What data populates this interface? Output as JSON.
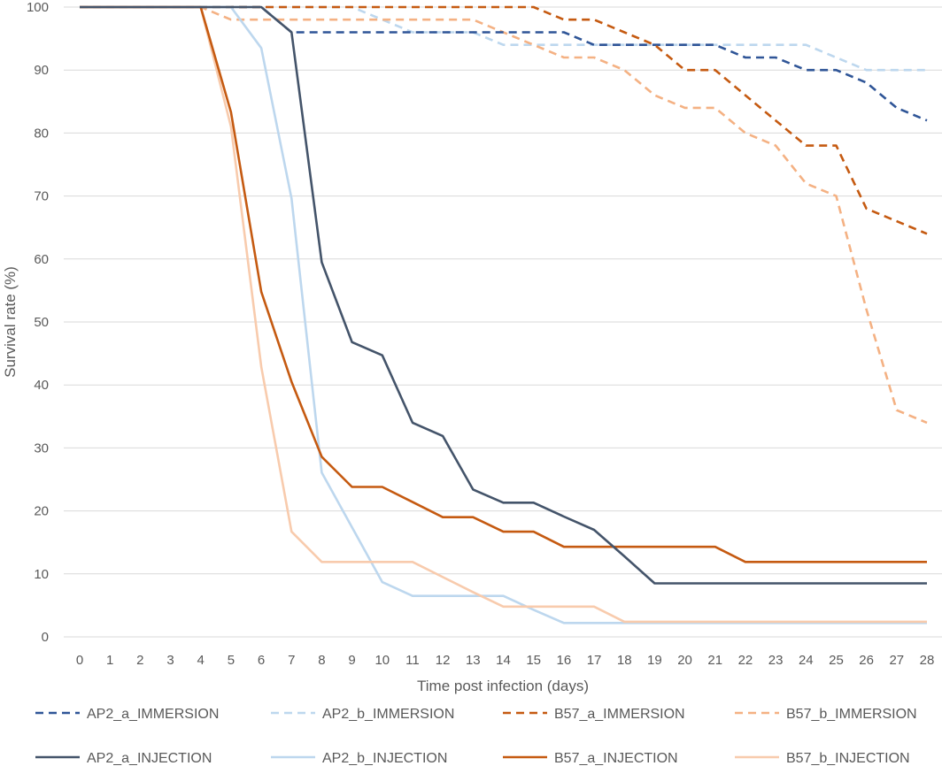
{
  "chart_data": {
    "type": "line",
    "title": "",
    "xlabel": "Time post infection (days)",
    "ylabel": "Survival rate (%)",
    "xlim": [
      0,
      28
    ],
    "ylim": [
      0,
      100
    ],
    "x_ticks": [
      0,
      1,
      2,
      3,
      4,
      5,
      6,
      7,
      8,
      9,
      10,
      11,
      12,
      13,
      14,
      15,
      16,
      17,
      18,
      19,
      20,
      21,
      22,
      23,
      24,
      25,
      26,
      27,
      28
    ],
    "y_ticks": [
      0,
      10,
      20,
      30,
      40,
      50,
      60,
      70,
      80,
      90,
      100
    ],
    "grid": "horizontal",
    "legend_position": "bottom",
    "series": [
      {
        "name": "AP2_a_IMMERSION",
        "color": "#2F5597",
        "dash": "dashed",
        "x": [
          0,
          4,
          6,
          7,
          10,
          13,
          16,
          17,
          18,
          19,
          21,
          22,
          23,
          24,
          25,
          26,
          27,
          28
        ],
        "y": [
          100,
          100,
          100,
          96,
          96,
          96,
          96,
          94,
          94,
          94,
          94,
          92,
          92,
          90,
          90,
          88,
          84,
          82
        ]
      },
      {
        "name": "AP2_b_IMMERSION",
        "color": "#BDD7EE",
        "dash": "dashed",
        "x": [
          0,
          4,
          5,
          7,
          8,
          9,
          10,
          11,
          12,
          13,
          14,
          15,
          16,
          17,
          24,
          25,
          26,
          27,
          28
        ],
        "y": [
          100,
          100,
          100,
          100,
          100,
          100,
          98,
          96,
          96,
          96,
          94,
          94,
          94,
          94,
          94,
          92,
          90,
          90,
          90
        ]
      },
      {
        "name": "B57_a_IMMERSION",
        "color": "#C55A11",
        "dash": "dashed",
        "x": [
          0,
          4,
          15,
          16,
          17,
          18,
          19,
          20,
          21,
          22,
          23,
          24,
          25,
          26,
          27,
          28
        ],
        "y": [
          100,
          100,
          100,
          98,
          98,
          96,
          94,
          90,
          90,
          86,
          82,
          78,
          78,
          68,
          66,
          64
        ]
      },
      {
        "name": "B57_b_IMMERSION",
        "color": "#F4B183",
        "dash": "dashed",
        "x": [
          0,
          4,
          5,
          13,
          14,
          15,
          16,
          17,
          18,
          19,
          20,
          21,
          22,
          23,
          24,
          25,
          26,
          27,
          28
        ],
        "y": [
          100,
          100,
          98,
          98,
          96,
          94,
          92,
          92,
          90,
          86,
          84,
          84,
          80,
          78,
          72,
          70,
          52,
          36,
          34
        ]
      },
      {
        "name": "AP2_a_INJECTION",
        "color": "#44546A",
        "dash": "solid",
        "x": [
          0,
          4,
          5,
          6,
          7,
          8,
          9,
          10,
          11,
          12,
          13,
          14,
          15,
          16,
          17,
          18,
          19,
          28
        ],
        "y": [
          100,
          100,
          100,
          100,
          96,
          59.5,
          46.8,
          44.7,
          34,
          31.9,
          23.4,
          21.3,
          21.3,
          19.1,
          17,
          12.8,
          8.5,
          8.5
        ]
      },
      {
        "name": "AP2_b_INJECTION",
        "color": "#BDD7EE",
        "dash": "solid",
        "x": [
          0,
          4,
          5,
          6,
          7,
          8,
          9,
          10,
          11,
          12,
          13,
          14,
          15,
          16,
          28
        ],
        "y": [
          100,
          100,
          100,
          93.5,
          69.6,
          26.1,
          17.4,
          8.7,
          6.5,
          6.5,
          6.5,
          6.5,
          4.3,
          2.2,
          2.2
        ]
      },
      {
        "name": "B57_a_INJECTION",
        "color": "#C55A11",
        "dash": "solid",
        "x": [
          0,
          4,
          5,
          6,
          7,
          8,
          9,
          10,
          11,
          12,
          13,
          14,
          15,
          16,
          21,
          22,
          28
        ],
        "y": [
          100,
          100,
          83.3,
          54.8,
          40.5,
          28.6,
          23.8,
          23.8,
          21.4,
          19,
          19,
          16.7,
          16.7,
          14.3,
          14.3,
          11.9,
          11.9
        ]
      },
      {
        "name": "B57_b_INJECTION",
        "color": "#F8CBAD",
        "dash": "solid",
        "x": [
          0,
          4,
          5,
          6,
          7,
          8,
          11,
          12,
          13,
          14,
          15,
          16,
          17,
          18,
          28
        ],
        "y": [
          100,
          100,
          81,
          42.9,
          16.7,
          11.9,
          11.9,
          9.5,
          7.1,
          4.8,
          4.8,
          4.8,
          4.8,
          2.4,
          2.4
        ]
      }
    ]
  }
}
